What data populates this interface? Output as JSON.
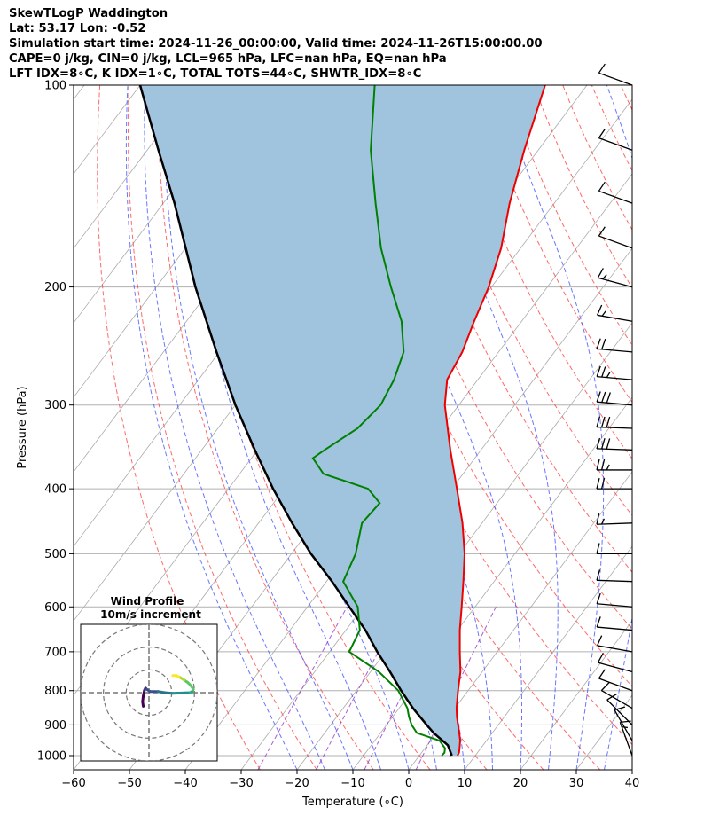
{
  "header": {
    "lines": [
      "SkewTLogP Waddington",
      "Lat: 53.17   Lon: -0.52",
      "Simulation start time: 2024-11-26_00:00:00, Valid time: 2024-11-26T15:00:00.00",
      "CAPE=0 j/kg, CIN=0 j/kg, LCL=965 hPa, LFC=nan hPa, EQ=nan hPa",
      "LFT IDX=8∘C, K IDX=1∘C, TOTAL TOTS=44∘C, SHWTR_IDX=8∘C"
    ]
  },
  "chart_data": {
    "type": "line",
    "xlabel": "Temperature (∘C)",
    "ylabel": "Pressure (hPa)",
    "xlim": [
      -60,
      40
    ],
    "ylim_pressure": [
      1050,
      100
    ],
    "log_pressure": true,
    "skew": true,
    "grid": true,
    "x_ticks": [
      "−60",
      "−50",
      "−40",
      "−30",
      "−20",
      "−10",
      "0",
      "10",
      "20",
      "30",
      "40"
    ],
    "y_ticks": [
      "100",
      "200",
      "300",
      "400",
      "500",
      "600",
      "700",
      "800",
      "900",
      "1000"
    ],
    "colors": {
      "temperature": "#ee0000",
      "dewpoint": "#008000",
      "parcel": "#000000",
      "cape_fill": "#a0c4de",
      "dry_adiabat": "#ff4444",
      "moist_adiabat": "#4455ff",
      "mixing_ratio": "#9933cc",
      "isotherm": "#aaaaaa"
    },
    "series": [
      {
        "name": "",
        "p": [
          1000,
          990,
          975,
          950,
          925,
          900,
          875,
          850,
          800,
          750,
          700,
          650,
          600,
          550,
          500,
          450,
          400,
          350,
          300,
          275,
          250,
          225,
          200,
          175,
          150,
          125,
          100
        ],
        "t": [
          6.8,
          6.7,
          6.2,
          5.3,
          4.1,
          2.8,
          1.5,
          0.3,
          -1.8,
          -3.9,
          -6.7,
          -9.6,
          -12.4,
          -15.5,
          -19.0,
          -23.5,
          -29.1,
          -35.5,
          -42.5,
          -45.5,
          -46.5,
          -48.5,
          -50.5,
          -53.5,
          -58.0,
          -62.5,
          -67.5
        ]
      },
      {
        "name": "",
        "p": [
          1000,
          990,
          975,
          950,
          925,
          900,
          875,
          850,
          800,
          750,
          700,
          650,
          600,
          550,
          500,
          450,
          420,
          400,
          380,
          360,
          350,
          325,
          300,
          275,
          250,
          225,
          200,
          175,
          150,
          125,
          100
        ],
        "t": [
          4.0,
          4.1,
          3.6,
          1.6,
          -3.5,
          -5.5,
          -7.1,
          -8.5,
          -12.5,
          -18.5,
          -26.5,
          -27.5,
          -31.0,
          -37.0,
          -38.5,
          -41.5,
          -41.0,
          -45.0,
          -55.0,
          -59.0,
          -58.0,
          -55.0,
          -54.0,
          -55.0,
          -57.0,
          -61.5,
          -68.0,
          -75.0,
          -82.0,
          -90.0,
          -98.0
        ]
      },
      {
        "name": "",
        "p": [
          1000,
          965,
          925,
          900,
          850,
          800,
          750,
          700,
          650,
          600,
          550,
          500,
          450,
          400,
          350,
          300,
          250,
          200,
          150,
          125,
          100
        ],
        "t": [
          5.8,
          3.7,
          -0.5,
          -2.8,
          -7.5,
          -12.0,
          -16.5,
          -21.5,
          -26.5,
          -32.5,
          -39.0,
          -46.5,
          -54.0,
          -62.0,
          -70.5,
          -80.0,
          -90.5,
          -103.0,
          -118.0,
          -128.0,
          -140.0
        ]
      }
    ],
    "wind_barbs": {
      "p": [
        100,
        125,
        150,
        175,
        200,
        225,
        250,
        275,
        300,
        325,
        350,
        375,
        400,
        450,
        500,
        550,
        600,
        650,
        700,
        750,
        800,
        850,
        900,
        950,
        1000
      ],
      "dir_deg": [
        290,
        290,
        290,
        290,
        285,
        280,
        275,
        275,
        275,
        272,
        272,
        270,
        270,
        268,
        270,
        272,
        275,
        275,
        280,
        285,
        290,
        300,
        315,
        330,
        340
      ],
      "speed_kt": [
        12,
        12,
        12,
        12,
        15,
        15,
        20,
        25,
        30,
        30,
        30,
        25,
        20,
        15,
        12,
        10,
        10,
        10,
        10,
        10,
        10,
        10,
        10,
        10,
        15
      ]
    },
    "hodograph": {
      "title": "Wind Profile",
      "subtitle": "10m/s increment",
      "u": [
        -2.5,
        -2.8,
        -2.5,
        -2.0,
        -1.5,
        -1.0,
        0.5,
        2.0,
        4.0,
        7.0,
        10.0,
        13.0,
        16.0,
        18.0,
        19.0,
        19.5,
        18.5,
        17.0,
        15.5,
        14.0,
        13.0,
        12.0,
        10.5
      ],
      "v": [
        -6.0,
        -4.0,
        -1.5,
        1.0,
        2.0,
        1.5,
        0.5,
        0.5,
        0.5,
        0.0,
        -0.3,
        -0.2,
        -0.1,
        0.0,
        0.5,
        1.5,
        3.0,
        4.5,
        5.5,
        6.5,
        7.0,
        7.5,
        7.5
      ],
      "rings_ms": [
        10,
        20,
        30
      ]
    }
  }
}
